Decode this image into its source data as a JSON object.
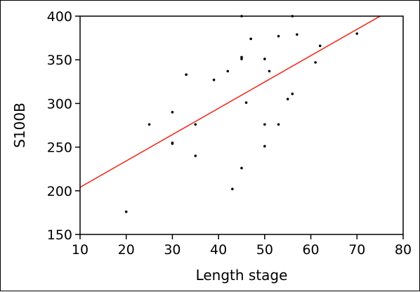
{
  "chart_data": {
    "type": "scatter",
    "title": "",
    "xlabel": "Length stage",
    "ylabel": "S100B",
    "xlim": [
      10,
      80
    ],
    "ylim": [
      150,
      400
    ],
    "xticks": [
      10,
      20,
      30,
      40,
      50,
      60,
      70,
      80
    ],
    "yticks": [
      150,
      200,
      250,
      300,
      350,
      400
    ],
    "grid": false,
    "legend": "none",
    "points": [
      {
        "x": 20,
        "y": 176
      },
      {
        "x": 25,
        "y": 276
      },
      {
        "x": 30,
        "y": 290
      },
      {
        "x": 30,
        "y": 255
      },
      {
        "x": 30,
        "y": 254
      },
      {
        "x": 33,
        "y": 333
      },
      {
        "x": 35,
        "y": 276
      },
      {
        "x": 35,
        "y": 240
      },
      {
        "x": 39,
        "y": 327
      },
      {
        "x": 42,
        "y": 337
      },
      {
        "x": 43,
        "y": 202
      },
      {
        "x": 45,
        "y": 226
      },
      {
        "x": 45,
        "y": 353
      },
      {
        "x": 45,
        "y": 351
      },
      {
        "x": 45,
        "y": 400
      },
      {
        "x": 46,
        "y": 301
      },
      {
        "x": 47,
        "y": 374
      },
      {
        "x": 50,
        "y": 351
      },
      {
        "x": 50,
        "y": 276
      },
      {
        "x": 50,
        "y": 251
      },
      {
        "x": 51,
        "y": 337
      },
      {
        "x": 53,
        "y": 377
      },
      {
        "x": 53,
        "y": 276
      },
      {
        "x": 55,
        "y": 305
      },
      {
        "x": 56,
        "y": 311
      },
      {
        "x": 56,
        "y": 400
      },
      {
        "x": 57,
        "y": 379
      },
      {
        "x": 61,
        "y": 347
      },
      {
        "x": 62,
        "y": 366
      },
      {
        "x": 70,
        "y": 380
      }
    ],
    "fit_line": {
      "x": [
        10,
        75
      ],
      "y": [
        204,
        400
      ]
    },
    "colors": {
      "points": "#000000",
      "fit_line": "#ee3322",
      "axes": "#000000"
    }
  }
}
